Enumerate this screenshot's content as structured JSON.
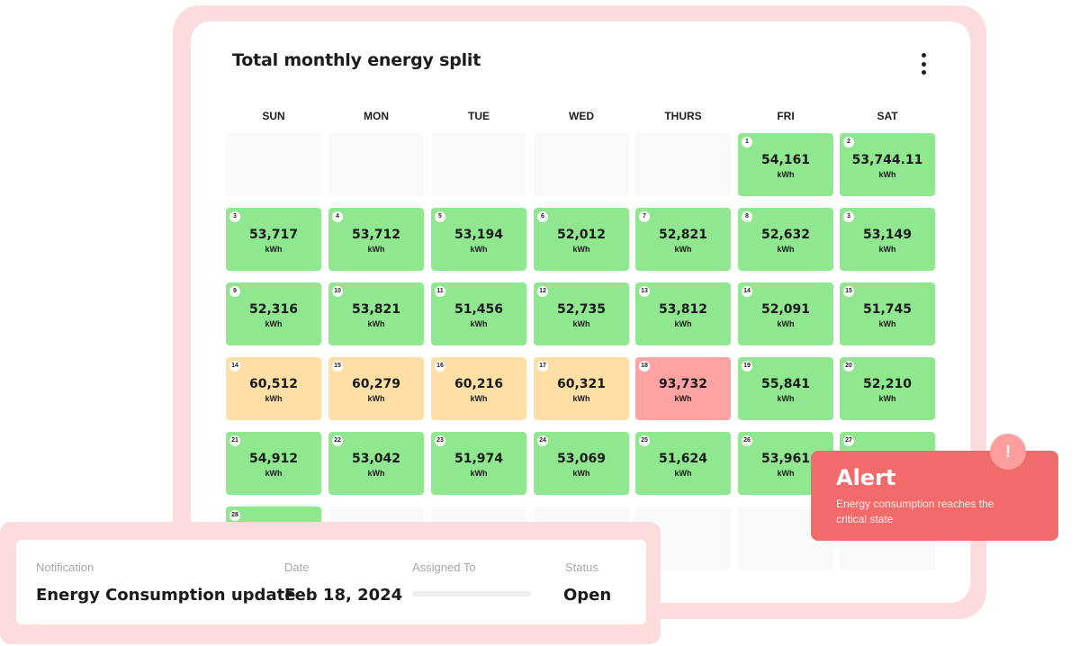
{
  "panel": {
    "title": "Total monthly energy split"
  },
  "days": [
    "SUN",
    "MON",
    "TUE",
    "WED",
    "THURS",
    "FRI",
    "SAT"
  ],
  "colors": {
    "normal": "#8fe88f",
    "elevated": "#ffdfa6",
    "critical": "#ffa3a3",
    "empty": "#f9f9f9"
  },
  "weeks": [
    [
      {
        "empty": true
      },
      {
        "empty": true
      },
      {
        "empty": true
      },
      {
        "empty": true
      },
      {
        "empty": true
      },
      {
        "day": "1",
        "value": "54,161",
        "unit": "kWh",
        "status": "green"
      },
      {
        "day": "2",
        "value": "53,744.11",
        "unit": "kWh",
        "status": "green"
      }
    ],
    [
      {
        "day": "3",
        "value": "53,717",
        "unit": "kWh",
        "status": "green"
      },
      {
        "day": "4",
        "value": "53,712",
        "unit": "kWh",
        "status": "green"
      },
      {
        "day": "5",
        "value": "53,194",
        "unit": "kWh",
        "status": "green"
      },
      {
        "day": "6",
        "value": "52,012",
        "unit": "kWh",
        "status": "green"
      },
      {
        "day": "7",
        "value": "52,821",
        "unit": "kWh",
        "status": "green"
      },
      {
        "day": "8",
        "value": "52,632",
        "unit": "kWh",
        "status": "green"
      },
      {
        "day": "3",
        "value": "53,149",
        "unit": "kWh",
        "status": "green"
      }
    ],
    [
      {
        "day": "9",
        "value": "52,316",
        "unit": "kWh",
        "status": "green"
      },
      {
        "day": "10",
        "value": "53,821",
        "unit": "kWh",
        "status": "green"
      },
      {
        "day": "11",
        "value": "51,456",
        "unit": "kWh",
        "status": "green"
      },
      {
        "day": "12",
        "value": "52,735",
        "unit": "kWh",
        "status": "green"
      },
      {
        "day": "13",
        "value": "53,812",
        "unit": "kWh",
        "status": "green"
      },
      {
        "day": "14",
        "value": "52,091",
        "unit": "kWh",
        "status": "green"
      },
      {
        "day": "15",
        "value": "51,745",
        "unit": "kWh",
        "status": "green"
      }
    ],
    [
      {
        "day": "14",
        "value": "60,512",
        "unit": "kWh",
        "status": "amber"
      },
      {
        "day": "15",
        "value": "60,279",
        "unit": "kWh",
        "status": "amber"
      },
      {
        "day": "16",
        "value": "60,216",
        "unit": "kWh",
        "status": "amber"
      },
      {
        "day": "17",
        "value": "60,321",
        "unit": "kWh",
        "status": "amber"
      },
      {
        "day": "18",
        "value": "93,732",
        "unit": "kWh",
        "status": "red"
      },
      {
        "day": "19",
        "value": "55,841",
        "unit": "kWh",
        "status": "green"
      },
      {
        "day": "20",
        "value": "52,210",
        "unit": "kWh",
        "status": "green"
      }
    ],
    [
      {
        "day": "21",
        "value": "54,912",
        "unit": "kWh",
        "status": "green"
      },
      {
        "day": "22",
        "value": "53,042",
        "unit": "kWh",
        "status": "green"
      },
      {
        "day": "23",
        "value": "51,974",
        "unit": "kWh",
        "status": "green"
      },
      {
        "day": "24",
        "value": "53,069",
        "unit": "kWh",
        "status": "green"
      },
      {
        "day": "25",
        "value": "51,624",
        "unit": "kWh",
        "status": "green"
      },
      {
        "day": "26",
        "value": "53,961",
        "unit": "kWh",
        "status": "green"
      },
      {
        "day": "27",
        "value": "",
        "unit": "",
        "status": "green"
      }
    ],
    [
      {
        "day": "28",
        "value": "",
        "unit": "",
        "status": "green"
      },
      {
        "empty": true
      },
      {
        "empty": true
      },
      {
        "empty": true
      },
      {
        "empty": true
      },
      {
        "empty": true
      },
      {
        "empty": true
      }
    ]
  ],
  "notification": {
    "notification_label": "Notification",
    "notification_value": "Energy Consumption update",
    "date_label": "Date",
    "date_value": "Feb 18, 2024",
    "assigned_label": "Assigned To",
    "status_label": "Status",
    "status_value": "Open"
  },
  "alert": {
    "badge": "!",
    "title": "Alert",
    "message": "Energy consumption reaches the critical state"
  }
}
